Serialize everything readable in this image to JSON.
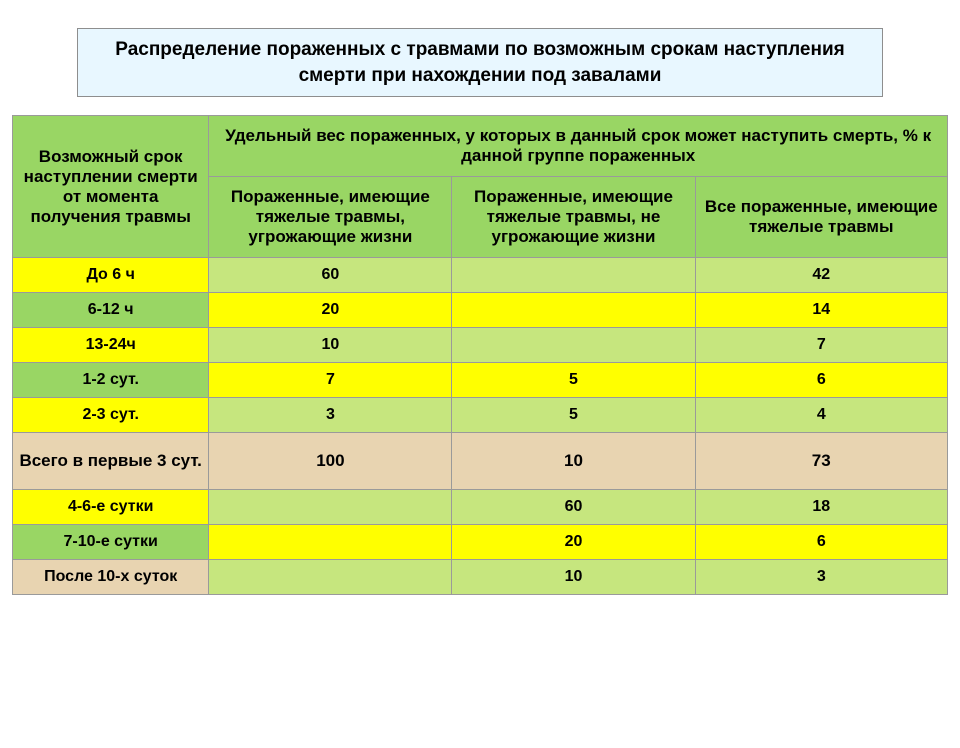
{
  "title": "Распределение пораженных с травмами по возможным срокам наступления смерти  при нахождении под завалами",
  "header": {
    "col0": "Возможный срок наступлении смерти от момента получения травмы",
    "group": "Удельный вес пораженных, у которых в данный срок может наступить смерть, % к данной группе пораженных",
    "col1": "Пораженные, имеющие тяжелые травмы, угрожающие жизни",
    "col2": "Пораженные, имеющие тяжелые травмы, не угрожающие жизни",
    "col3": "Все  пораженные, имеющие тяжелые травмы"
  },
  "rows": [
    {
      "label": "До 6 ч",
      "c1": "60",
      "c2": "",
      "c3": "42",
      "style": "alt1"
    },
    {
      "label": "6-12 ч",
      "c1": "20",
      "c2": "",
      "c3": "14",
      "style": "alt2"
    },
    {
      "label": "13-24ч",
      "c1": "10",
      "c2": "",
      "c3": "7",
      "style": "alt1"
    },
    {
      "label": "1-2 сут.",
      "c1": "7",
      "c2": "5",
      "c3": "6",
      "style": "alt2"
    },
    {
      "label": "2-3 сут.",
      "c1": "3",
      "c2": "5",
      "c3": "4",
      "style": "alt1"
    },
    {
      "label": "Всего в первые 3 сут.",
      "c1": "100",
      "c2": "10",
      "c3": "73",
      "style": "total"
    },
    {
      "label": "4-6-е сутки",
      "c1": "",
      "c2": "60",
      "c3": "18",
      "style": "alt1"
    },
    {
      "label": "7-10-е сутки",
      "c1": "",
      "c2": "20",
      "c3": "6",
      "style": "alt2"
    },
    {
      "label": "После 10-х суток",
      "c1": "",
      "c2": "10",
      "c3": "3",
      "style": "last"
    }
  ],
  "styles": {
    "green": "#99d664",
    "yellow": "#ffff00",
    "lime": "#c6e67e",
    "tan": "#e8d4b1"
  }
}
